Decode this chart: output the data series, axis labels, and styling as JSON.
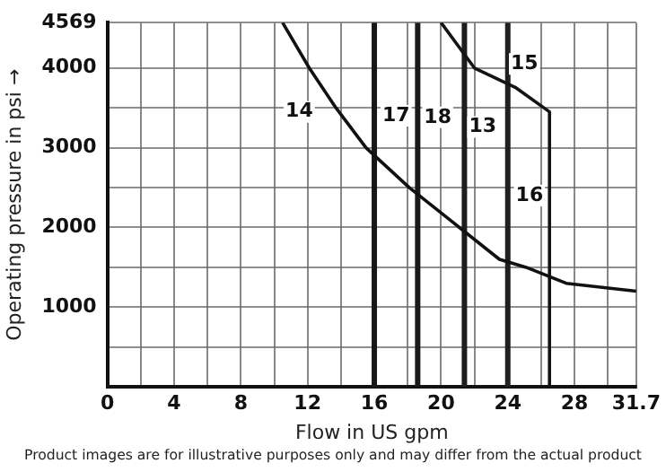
{
  "chart_data": {
    "type": "line",
    "xlabel": "Flow in US gpm",
    "ylabel": "Operating pressure in psi →",
    "xlim": [
      0,
      31.7
    ],
    "ylim": [
      0,
      4569
    ],
    "xticks": [
      0,
      {
        "value": 2,
        "label": null
      },
      4,
      {
        "value": 6,
        "label": null
      },
      8,
      {
        "value": 10,
        "label": null
      },
      12,
      {
        "value": 14,
        "label": null
      },
      16,
      {
        "value": 18,
        "label": null
      },
      20,
      {
        "value": 22,
        "label": null
      },
      24,
      {
        "value": 26,
        "label": null
      },
      28,
      {
        "value": 30,
        "label": null
      },
      31.7
    ],
    "yticks": [
      {
        "value": 0,
        "label": null
      },
      {
        "value": 500,
        "label": null
      },
      1000,
      {
        "value": 1500,
        "label": null
      },
      2000,
      {
        "value": 2500,
        "label": null
      },
      3000,
      {
        "value": 3500,
        "label": null
      },
      4000,
      4569
    ],
    "grid": true,
    "legend": false,
    "marker": "none",
    "line_style": "solid",
    "series": [
      {
        "color": "#111111",
        "x": [
          10.5,
          12.1,
          13.7,
          15.5,
          18.1,
          21.1,
          23.5,
          25.1,
          27.5,
          31.7
        ],
        "values": [
          4569,
          4000,
          3500,
          3000,
          2500,
          2000,
          1600,
          1500,
          1300,
          1200
        ]
      },
      {
        "color": "#141414",
        "x": [
          20.0,
          22.0,
          24.5,
          26.5,
          26.5
        ],
        "values": [
          4569,
          4000,
          3750,
          3450,
          0
        ]
      },
      {
        "color": "#171717",
        "x": [
          16,
          16
        ],
        "values": [
          0,
          4569
        ]
      },
      {
        "color": "#1a1a1a",
        "x": [
          18.6,
          18.6
        ],
        "values": [
          0,
          4569
        ]
      },
      {
        "color": "#1d1d1d",
        "x": [
          21.4,
          21.4
        ],
        "values": [
          0,
          4569
        ]
      },
      {
        "color": "#202020",
        "x": [
          24,
          24
        ],
        "values": [
          0,
          4569
        ]
      }
    ],
    "annotations": [
      {
        "text": "14",
        "x": 11.5,
        "y": 3450
      },
      {
        "text": "15",
        "x": 25.0,
        "y": 4050
      },
      {
        "text": "17",
        "x": 17.3,
        "y": 3400
      },
      {
        "text": "18",
        "x": 19.8,
        "y": 3380
      },
      {
        "text": "13",
        "x": 22.5,
        "y": 3260
      },
      {
        "text": "16",
        "x": 25.3,
        "y": 2400
      },
      "Product images are for illustrative purposes only and may differ from the actual product"
    ]
  }
}
